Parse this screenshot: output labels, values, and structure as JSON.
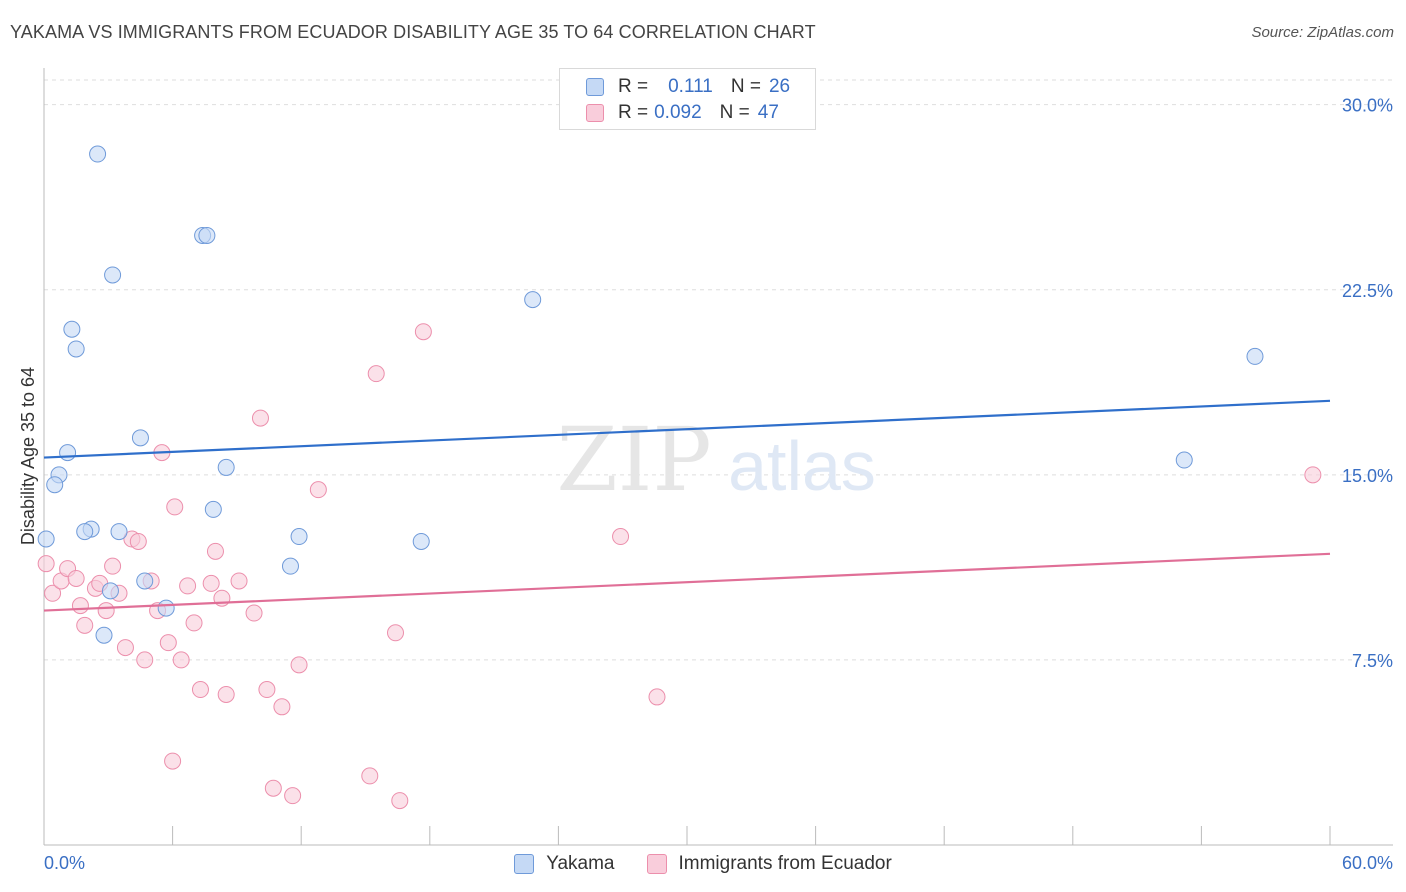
{
  "title": "YAKAMA VS IMMIGRANTS FROM ECUADOR DISABILITY AGE 35 TO 64 CORRELATION CHART",
  "source": "Source: ZipAtlas.com",
  "watermark": {
    "zip": "ZIP",
    "atlas": "atlas"
  },
  "legend": {
    "rows": [
      {
        "r_label": "R =",
        "r_value": "0.111",
        "n_label": "N =",
        "n_value": "26"
      },
      {
        "r_label": "R =",
        "r_value": "0.092",
        "n_label": "N =",
        "n_value": "47"
      }
    ]
  },
  "colors": {
    "yakama_fill": "#c5d9f5",
    "yakama_stroke": "#6f9ad9",
    "yakama_line": "#2f6fcb",
    "ecuador_fill": "#f9cddb",
    "ecuador_stroke": "#ec8fac",
    "ecuador_line": "#e06f97",
    "tick_label": "#3a6fc4",
    "grid": "#dedede"
  },
  "chart_data": {
    "type": "scatter",
    "xlabel": "",
    "ylabel": "Disability Age 35 to 64",
    "xlim": [
      0,
      60
    ],
    "ylim": [
      0,
      31
    ],
    "x_tick_labels": [
      {
        "value": 0,
        "label": "0.0%"
      },
      {
        "value": 60,
        "label": "60.0%"
      }
    ],
    "y_tick_labels": [
      {
        "value": 7.5,
        "label": "7.5%"
      },
      {
        "value": 15,
        "label": "15.0%"
      },
      {
        "value": 22.5,
        "label": "22.5%"
      },
      {
        "value": 30,
        "label": "30.0%"
      }
    ],
    "grid": true,
    "legend_position": "top-center",
    "series": [
      {
        "name": "Yakama",
        "points": [
          [
            2.5,
            28.0
          ],
          [
            7.4,
            24.7
          ],
          [
            7.6,
            24.7
          ],
          [
            3.2,
            23.1
          ],
          [
            1.3,
            20.9
          ],
          [
            1.5,
            20.1
          ],
          [
            22.8,
            22.1
          ],
          [
            56.5,
            19.8
          ],
          [
            4.5,
            16.5
          ],
          [
            1.1,
            15.9
          ],
          [
            0.7,
            15.0
          ],
          [
            0.5,
            14.6
          ],
          [
            8.5,
            15.3
          ],
          [
            53.2,
            15.6
          ],
          [
            7.9,
            13.6
          ],
          [
            2.2,
            12.8
          ],
          [
            3.5,
            12.7
          ],
          [
            1.9,
            12.7
          ],
          [
            11.9,
            12.5
          ],
          [
            0.1,
            12.4
          ],
          [
            17.6,
            12.3
          ],
          [
            11.5,
            11.3
          ],
          [
            4.7,
            10.7
          ],
          [
            3.1,
            10.3
          ],
          [
            5.7,
            9.6
          ],
          [
            2.8,
            8.5
          ]
        ],
        "trend": {
          "x": [
            0,
            60
          ],
          "y": [
            15.7,
            18.0
          ]
        }
      },
      {
        "name": "Immigrants from Ecuador",
        "points": [
          [
            0.1,
            11.4
          ],
          [
            0.4,
            10.2
          ],
          [
            0.8,
            10.7
          ],
          [
            1.1,
            11.2
          ],
          [
            1.5,
            10.8
          ],
          [
            1.7,
            9.7
          ],
          [
            1.9,
            8.9
          ],
          [
            2.4,
            10.4
          ],
          [
            2.6,
            10.6
          ],
          [
            2.9,
            9.5
          ],
          [
            3.2,
            11.3
          ],
          [
            3.5,
            10.2
          ],
          [
            3.8,
            8.0
          ],
          [
            4.1,
            12.4
          ],
          [
            4.4,
            12.3
          ],
          [
            4.7,
            7.5
          ],
          [
            5.0,
            10.7
          ],
          [
            5.3,
            9.5
          ],
          [
            5.5,
            15.9
          ],
          [
            5.8,
            8.2
          ],
          [
            6.1,
            13.7
          ],
          [
            6.4,
            7.5
          ],
          [
            6.7,
            10.5
          ],
          [
            7.0,
            9.0
          ],
          [
            7.3,
            6.3
          ],
          [
            7.8,
            10.6
          ],
          [
            8.0,
            11.9
          ],
          [
            8.3,
            10.0
          ],
          [
            8.5,
            6.1
          ],
          [
            9.1,
            10.7
          ],
          [
            9.8,
            9.4
          ],
          [
            10.1,
            17.3
          ],
          [
            10.4,
            6.3
          ],
          [
            10.7,
            2.3
          ],
          [
            11.1,
            5.6
          ],
          [
            11.6,
            2.0
          ],
          [
            11.9,
            7.3
          ],
          [
            12.8,
            14.4
          ],
          [
            15.2,
            2.8
          ],
          [
            15.5,
            19.1
          ],
          [
            16.4,
            8.6
          ],
          [
            16.6,
            1.8
          ],
          [
            17.7,
            20.8
          ],
          [
            26.9,
            12.5
          ],
          [
            28.6,
            6.0
          ],
          [
            59.2,
            15.0
          ],
          [
            6.0,
            3.4
          ]
        ],
        "trend": {
          "x": [
            0,
            60
          ],
          "y": [
            9.5,
            11.8
          ]
        }
      }
    ]
  }
}
